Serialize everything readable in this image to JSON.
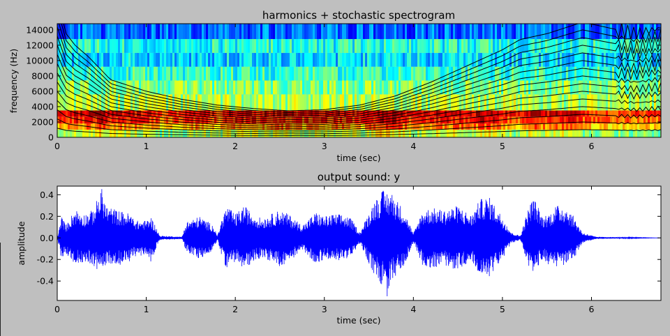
{
  "chart_data": [
    {
      "type": "heatmap",
      "title": "harmonics + stochastic spectrogram",
      "xlabel": "time (sec)",
      "ylabel": "frequency (Hz)",
      "xlim": [
        0,
        6.78
      ],
      "ylim": [
        0,
        14800
      ],
      "xticks": [
        "0",
        "1",
        "2",
        "3",
        "4",
        "5",
        "6"
      ],
      "yticks": [
        "0",
        "2000",
        "4000",
        "6000",
        "8000",
        "10000",
        "12000",
        "14000"
      ],
      "colormap": "jet",
      "bands": [
        {
          "fmin": 0,
          "fmax": 1000,
          "level": 0.55
        },
        {
          "fmin": 1000,
          "fmax": 1800,
          "level": 0.72
        },
        {
          "fmin": 1800,
          "fmax": 2700,
          "level": 0.82
        },
        {
          "fmin": 2700,
          "fmax": 3500,
          "level": 0.88
        },
        {
          "fmin": 3500,
          "fmax": 5600,
          "level": 0.55
        },
        {
          "fmin": 5600,
          "fmax": 7400,
          "level": 0.5
        },
        {
          "fmin": 7400,
          "fmax": 9200,
          "level": 0.42
        },
        {
          "fmin": 9200,
          "fmax": 11000,
          "level": 0.34
        },
        {
          "fmin": 11000,
          "fmax": 12800,
          "level": 0.4
        },
        {
          "fmin": 12800,
          "fmax": 14800,
          "level": 0.22
        }
      ],
      "harmonics_fundamental": [
        [
          0.0,
          1200
        ],
        [
          0.1,
          900
        ],
        [
          0.2,
          800
        ],
        [
          0.35,
          700
        ],
        [
          0.6,
          500
        ],
        [
          0.8,
          450
        ],
        [
          1.0,
          400
        ],
        [
          1.4,
          330
        ],
        [
          1.8,
          280
        ],
        [
          2.2,
          250
        ],
        [
          2.6,
          230
        ],
        [
          3.0,
          240
        ],
        [
          3.4,
          280
        ],
        [
          3.8,
          360
        ],
        [
          4.2,
          480
        ],
        [
          4.6,
          620
        ],
        [
          5.0,
          760
        ],
        [
          5.2,
          850
        ],
        [
          5.5,
          900
        ],
        [
          5.9,
          1000
        ],
        [
          6.2,
          950
        ],
        [
          6.5,
          900
        ],
        [
          6.78,
          950
        ]
      ],
      "harmonics_count": 15
    },
    {
      "type": "line",
      "title": "output sound: y",
      "xlabel": "time (sec)",
      "ylabel": "amplitude",
      "xlim": [
        0,
        6.78
      ],
      "ylim": [
        -0.58,
        0.48
      ],
      "xticks": [
        "0",
        "1",
        "2",
        "3",
        "4",
        "5",
        "6"
      ],
      "yticks": [
        "0.4",
        "0.2",
        "0.0",
        "-0.2",
        "-0.4"
      ],
      "series": [
        {
          "color": "#0000ff",
          "envelope_pos": [
            [
              0.0,
              0.0
            ],
            [
              0.05,
              0.2
            ],
            [
              0.1,
              0.12
            ],
            [
              0.2,
              0.27
            ],
            [
              0.3,
              0.22
            ],
            [
              0.4,
              0.26
            ],
            [
              0.5,
              0.46
            ],
            [
              0.55,
              0.3
            ],
            [
              0.7,
              0.25
            ],
            [
              0.8,
              0.23
            ],
            [
              0.9,
              0.16
            ],
            [
              1.0,
              0.16
            ],
            [
              1.05,
              0.2
            ],
            [
              1.1,
              0.12
            ],
            [
              1.15,
              0.02
            ],
            [
              1.4,
              0.01
            ],
            [
              1.45,
              0.15
            ],
            [
              1.6,
              0.2
            ],
            [
              1.75,
              0.12
            ],
            [
              1.8,
              0.02
            ],
            [
              1.85,
              0.18
            ],
            [
              1.9,
              0.3
            ],
            [
              2.0,
              0.22
            ],
            [
              2.1,
              0.3
            ],
            [
              2.2,
              0.22
            ],
            [
              2.3,
              0.18
            ],
            [
              2.4,
              0.22
            ],
            [
              2.5,
              0.26
            ],
            [
              2.6,
              0.22
            ],
            [
              2.75,
              0.12
            ],
            [
              2.8,
              0.15
            ],
            [
              2.9,
              0.24
            ],
            [
              3.0,
              0.2
            ],
            [
              3.1,
              0.22
            ],
            [
              3.2,
              0.22
            ],
            [
              3.3,
              0.18
            ],
            [
              3.4,
              0.05
            ],
            [
              3.55,
              0.33
            ],
            [
              3.65,
              0.44
            ],
            [
              3.75,
              0.43
            ],
            [
              3.9,
              0.25
            ],
            [
              4.0,
              0.04
            ],
            [
              4.1,
              0.25
            ],
            [
              4.2,
              0.28
            ],
            [
              4.35,
              0.26
            ],
            [
              4.5,
              0.3
            ],
            [
              4.65,
              0.21
            ],
            [
              4.75,
              0.36
            ],
            [
              4.85,
              0.38
            ],
            [
              5.0,
              0.2
            ],
            [
              5.1,
              0.05
            ],
            [
              5.2,
              0.02
            ],
            [
              5.3,
              0.3
            ],
            [
              5.35,
              0.38
            ],
            [
              5.45,
              0.2
            ],
            [
              5.55,
              0.24
            ],
            [
              5.6,
              0.3
            ],
            [
              5.7,
              0.3
            ],
            [
              5.8,
              0.2
            ],
            [
              5.9,
              0.05
            ],
            [
              6.05,
              0.01
            ],
            [
              6.78,
              0.0
            ]
          ],
          "envelope_neg": [
            [
              0.0,
              0.0
            ],
            [
              0.05,
              -0.22
            ],
            [
              0.1,
              -0.15
            ],
            [
              0.2,
              -0.25
            ],
            [
              0.3,
              -0.22
            ],
            [
              0.4,
              -0.25
            ],
            [
              0.5,
              -0.35
            ],
            [
              0.55,
              -0.24
            ],
            [
              0.7,
              -0.25
            ],
            [
              0.8,
              -0.23
            ],
            [
              0.9,
              -0.16
            ],
            [
              1.0,
              -0.17
            ],
            [
              1.05,
              -0.22
            ],
            [
              1.1,
              -0.12
            ],
            [
              1.15,
              -0.02
            ],
            [
              1.4,
              -0.01
            ],
            [
              1.45,
              -0.13
            ],
            [
              1.6,
              -0.2
            ],
            [
              1.75,
              -0.12
            ],
            [
              1.8,
              -0.02
            ],
            [
              1.85,
              -0.18
            ],
            [
              1.9,
              -0.28
            ],
            [
              2.0,
              -0.22
            ],
            [
              2.1,
              -0.3
            ],
            [
              2.2,
              -0.22
            ],
            [
              2.3,
              -0.18
            ],
            [
              2.4,
              -0.22
            ],
            [
              2.5,
              -0.27
            ],
            [
              2.6,
              -0.22
            ],
            [
              2.75,
              -0.12
            ],
            [
              2.8,
              -0.15
            ],
            [
              2.9,
              -0.24
            ],
            [
              3.0,
              -0.2
            ],
            [
              3.1,
              -0.22
            ],
            [
              3.2,
              -0.2
            ],
            [
              3.3,
              -0.18
            ],
            [
              3.4,
              -0.05
            ],
            [
              3.55,
              -0.33
            ],
            [
              3.65,
              -0.45
            ],
            [
              3.7,
              -0.57
            ],
            [
              3.75,
              -0.42
            ],
            [
              3.9,
              -0.25
            ],
            [
              4.0,
              -0.04
            ],
            [
              4.1,
              -0.25
            ],
            [
              4.2,
              -0.28
            ],
            [
              4.35,
              -0.26
            ],
            [
              4.5,
              -0.3
            ],
            [
              4.65,
              -0.21
            ],
            [
              4.75,
              -0.38
            ],
            [
              4.85,
              -0.36
            ],
            [
              5.0,
              -0.2
            ],
            [
              5.1,
              -0.05
            ],
            [
              5.2,
              -0.02
            ],
            [
              5.3,
              -0.3
            ],
            [
              5.35,
              -0.33
            ],
            [
              5.45,
              -0.2
            ],
            [
              5.55,
              -0.27
            ],
            [
              5.6,
              -0.28
            ],
            [
              5.7,
              -0.25
            ],
            [
              5.8,
              -0.2
            ],
            [
              5.9,
              -0.05
            ],
            [
              6.05,
              -0.01
            ],
            [
              6.78,
              0.0
            ]
          ]
        }
      ]
    }
  ]
}
